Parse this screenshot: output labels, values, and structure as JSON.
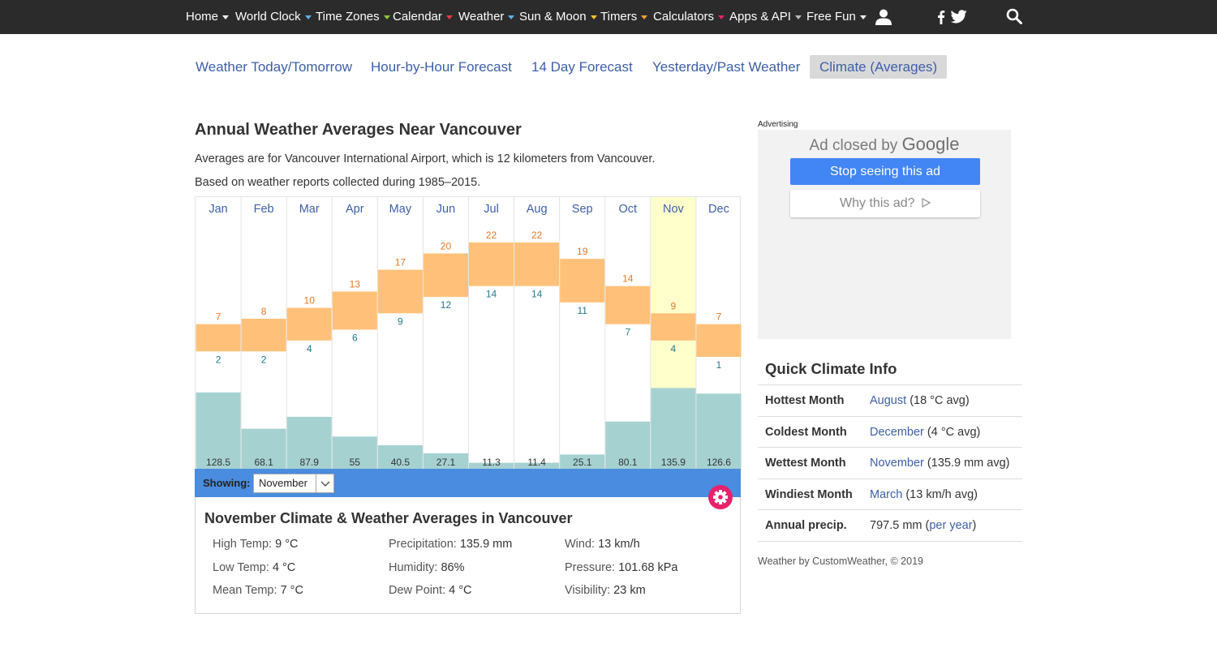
{
  "nav": {
    "items": [
      {
        "label": "Home",
        "caret": "#ffffff"
      },
      {
        "label": "World Clock",
        "caret": "#5bb3f0"
      },
      {
        "label": "Time Zones",
        "caret": "#8cc63f"
      },
      {
        "label": "Calendar",
        "caret": "#e63946"
      },
      {
        "label": "Weather",
        "caret": "#5bb3f0"
      },
      {
        "label": "Sun & Moon",
        "caret": "#f4c430"
      },
      {
        "label": "Timers",
        "caret": "#f4a030"
      },
      {
        "label": "Calculators",
        "caret": "#e8216c"
      },
      {
        "label": "Apps & API",
        "caret": "#bbbbbb"
      },
      {
        "label": "Free Fun",
        "caret": "#ffffff"
      }
    ],
    "icons": [
      "user-icon",
      "facebook-icon",
      "twitter-icon",
      "search-icon"
    ]
  },
  "tabs": [
    {
      "label": "Weather Today/Tomorrow",
      "active": false
    },
    {
      "label": "Hour-by-Hour Forecast",
      "active": false
    },
    {
      "label": "14 Day Forecast",
      "active": false
    },
    {
      "label": "Yesterday/Past Weather",
      "active": false
    },
    {
      "label": "Climate (Averages)",
      "active": true
    }
  ],
  "page": {
    "title": "Annual Weather Averages Near Vancouver",
    "intro1": "Averages are for Vancouver International Airport, which is 12 kilometers from Vancouver.",
    "intro2": "Based on weather reports collected during 1985–2015."
  },
  "chart_data": {
    "type": "bar",
    "categories": [
      "Jan",
      "Feb",
      "Mar",
      "Apr",
      "May",
      "Jun",
      "Jul",
      "Aug",
      "Sep",
      "Oct",
      "Nov",
      "Dec"
    ],
    "series": [
      {
        "name": "High Temp",
        "unit": "°C",
        "values": [
          7,
          8,
          10,
          13,
          17,
          20,
          22,
          22,
          19,
          14,
          9,
          7
        ]
      },
      {
        "name": "Low Temp",
        "unit": "°C",
        "values": [
          2,
          2,
          4,
          6,
          9,
          12,
          14,
          14,
          11,
          7,
          4,
          1
        ]
      },
      {
        "name": "Precipitation",
        "unit": "mm",
        "values": [
          128.5,
          68.1,
          87.9,
          55,
          40.5,
          27.1,
          11.3,
          11.4,
          25.1,
          80.1,
          135.9,
          126.6
        ]
      }
    ],
    "highlighted": "Nov",
    "colors": {
      "temp_range": "#ffc17a",
      "high_label": "#e87722",
      "low_label": "#1f7a8c",
      "precip": "#a5d1d1",
      "highlight": "#ffffcc",
      "month_label": "#3d5fa8"
    }
  },
  "showing": {
    "label": "Showing:",
    "value": "November"
  },
  "detail": {
    "title": "November Climate & Weather Averages in Vancouver",
    "high_label": "High Temp:",
    "high_value": "9 °C",
    "low_label": "Low Temp:",
    "low_value": "4 °C",
    "mean_label": "Mean Temp:",
    "mean_value": "7 °C",
    "precip_label": "Precipitation:",
    "precip_value": "135.9 mm",
    "humidity_label": "Humidity:",
    "humidity_value": "86%",
    "dew_label": "Dew Point:",
    "dew_value": "4 °C",
    "wind_label": "Wind:",
    "wind_value": "13 km/h",
    "pressure_label": "Pressure:",
    "pressure_value": "101.68 kPa",
    "visibility_label": "Visibility:",
    "visibility_value": "23 km"
  },
  "ad": {
    "label": "Advertising",
    "closed_text": "Ad closed by",
    "brand": "Google",
    "stop_label": "Stop seeing this ad",
    "why_label": "Why this ad?"
  },
  "quick": {
    "title": "Quick Climate Info",
    "rows": [
      {
        "key": "Hottest Month",
        "link": "August",
        "rest": "(18 °C avg)"
      },
      {
        "key": "Coldest Month",
        "link": "December",
        "rest": "(4 °C avg)"
      },
      {
        "key": "Wettest Month",
        "link": "November",
        "rest": "(135.9 mm avg)"
      },
      {
        "key": "Windiest Month",
        "link": "March",
        "rest": "(13 km/h avg)"
      }
    ],
    "annual_key": "Annual precip.",
    "annual_value": "797.5 mm (",
    "annual_link": "per year",
    "annual_close": ")"
  },
  "credit": "Weather by CustomWeather, © 2019"
}
